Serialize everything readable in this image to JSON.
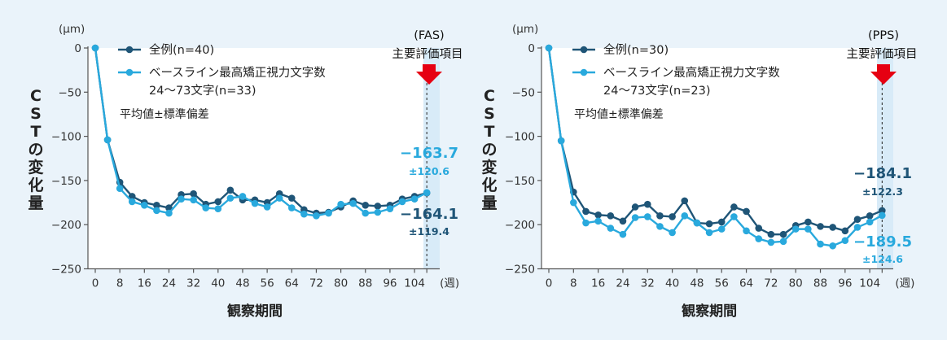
{
  "colors": {
    "all": "#1f5577",
    "subset": "#29a9dd",
    "arrow": "#e60012",
    "highlight": "#d8ebf8"
  },
  "chart_data": [
    {
      "type": "line",
      "title": "",
      "study_tag": "(FAS)",
      "eval_label": "主要評価項目",
      "unit": "(μm)",
      "xunit": "(週)",
      "xlabel": "観察期間",
      "ylabel": "CSTの変化量",
      "ylim": [
        -250,
        0
      ],
      "yticks": [
        0,
        -50,
        -100,
        -150,
        -200,
        -250
      ],
      "xticks": [
        0,
        8,
        16,
        24,
        32,
        40,
        48,
        56,
        64,
        72,
        80,
        88,
        96,
        104
      ],
      "xlim": [
        -2,
        112
      ],
      "primary_week": 108,
      "note": "平均値±標準偏差",
      "x": [
        0,
        4,
        8,
        12,
        16,
        20,
        24,
        28,
        32,
        36,
        40,
        44,
        48,
        52,
        56,
        60,
        64,
        68,
        72,
        76,
        80,
        84,
        88,
        92,
        96,
        100,
        104,
        108
      ],
      "series": [
        {
          "name": "全例(n=40)",
          "legend_line2": "",
          "values": [
            0,
            -104,
            -152,
            -168,
            -175,
            -178,
            -181,
            -166,
            -165,
            -177,
            -174,
            -161,
            -172,
            -172,
            -175,
            -165,
            -170,
            -183,
            -187,
            -186,
            -180,
            -173,
            -178,
            -179,
            -178,
            -171,
            -168,
            -164.1
          ]
        },
        {
          "name": "ベースライン最高矯正視力文字数",
          "legend_line2": "24〜73文字(n=33)",
          "values": [
            0,
            -104,
            -159,
            -174,
            -178,
            -184,
            -187,
            -171,
            -172,
            -181,
            -182,
            -170,
            -168,
            -176,
            -180,
            -170,
            -181,
            -188,
            -190,
            -187,
            -177,
            -176,
            -187,
            -186,
            -182,
            -174,
            -171,
            -163.7
          ]
        }
      ],
      "annotations": [
        {
          "value": "−163.7",
          "sd": "±120.6",
          "series": 1
        },
        {
          "value": "−164.1",
          "sd": "±119.4",
          "series": 0
        }
      ]
    },
    {
      "type": "line",
      "title": "",
      "study_tag": "(PPS)",
      "eval_label": "主要評価項目",
      "unit": "(μm)",
      "xunit": "(週)",
      "xlabel": "観察期間",
      "ylabel": "CSTの変化量",
      "ylim": [
        -250,
        0
      ],
      "yticks": [
        0,
        -50,
        -100,
        -150,
        -200,
        -250
      ],
      "xticks": [
        0,
        8,
        16,
        24,
        32,
        40,
        48,
        56,
        64,
        72,
        80,
        88,
        96,
        104
      ],
      "xlim": [
        -2,
        112
      ],
      "primary_week": 108,
      "note": "平均値±標準偏差",
      "x": [
        0,
        4,
        8,
        12,
        16,
        20,
        24,
        28,
        32,
        36,
        40,
        44,
        48,
        52,
        56,
        60,
        64,
        68,
        72,
        76,
        80,
        84,
        88,
        92,
        96,
        100,
        104,
        108
      ],
      "series": [
        {
          "name": "全例(n=30)",
          "legend_line2": "",
          "values": [
            0,
            -105,
            -163,
            -185,
            -189,
            -190,
            -196,
            -180,
            -177,
            -190,
            -191,
            -173,
            -198,
            -199,
            -197,
            -180,
            -185,
            -204,
            -211,
            -211,
            -201,
            -197,
            -202,
            -203,
            -207,
            -194,
            -190,
            -184.1
          ]
        },
        {
          "name": "ベースライン最高矯正視力文字数",
          "legend_line2": "24〜73文字(n=23)",
          "values": [
            0,
            -105,
            -175,
            -198,
            -196,
            -204,
            -211,
            -192,
            -191,
            -202,
            -209,
            -190,
            -198,
            -209,
            -205,
            -191,
            -207,
            -216,
            -220,
            -219,
            -205,
            -205,
            -222,
            -224,
            -218,
            -203,
            -197,
            -189.5
          ]
        }
      ],
      "annotations": [
        {
          "value": "−184.1",
          "sd": "±122.3",
          "series": 0
        },
        {
          "value": "−189.5",
          "sd": "±124.6",
          "series": 1
        }
      ]
    }
  ]
}
